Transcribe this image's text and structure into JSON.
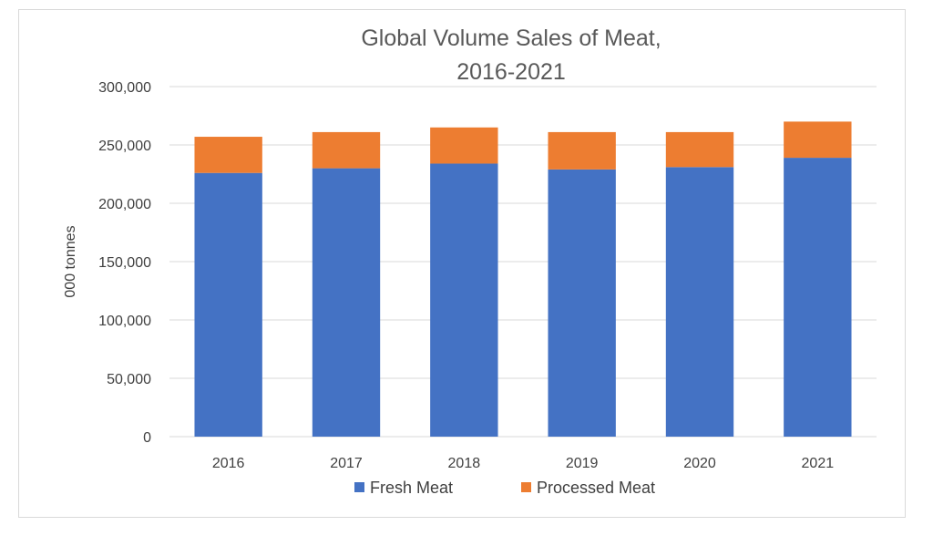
{
  "chart_data": {
    "type": "bar",
    "stacked": true,
    "title_lines": [
      "Global Volume Sales of Meat,",
      "2016-2021"
    ],
    "ylabel": "000 tonnes",
    "xlabel": "",
    "categories": [
      "2016",
      "2017",
      "2018",
      "2019",
      "2020",
      "2021"
    ],
    "series": [
      {
        "name": "Fresh Meat",
        "color": "#4472c4",
        "values": [
          226000,
          230000,
          234000,
          229000,
          231000,
          239000
        ]
      },
      {
        "name": "Processed Meat",
        "color": "#ed7d31",
        "values": [
          31000,
          31000,
          31000,
          32000,
          30000,
          31000
        ]
      }
    ],
    "ylim": [
      0,
      300000
    ],
    "yticks": [
      0,
      50000,
      100000,
      150000,
      200000,
      250000,
      300000
    ],
    "ytick_labels": [
      "0",
      "50,000",
      "100,000",
      "150,000",
      "200,000",
      "250,000",
      "300,000"
    ],
    "grid": true,
    "legend_position": "bottom"
  }
}
